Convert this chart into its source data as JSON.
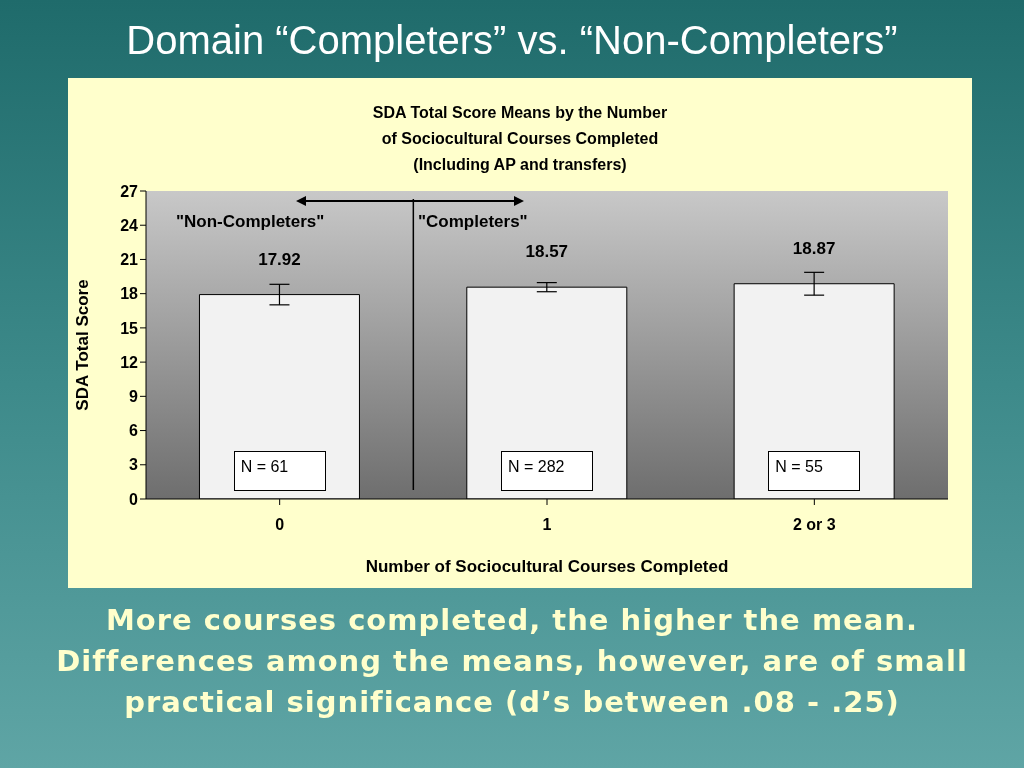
{
  "chart_data": {
    "type": "bar",
    "title": "Domain “Completers” vs. “Non-Completers”",
    "subtitle": "SDA Total Score Means by the Number\nof Sociocultural Courses Completed\n(Including AP and transfers)",
    "xlabel": "Number of Sociocultural Courses Completed",
    "ylabel": "SDA Total Score",
    "categories": [
      "0",
      "1",
      "2 or 3"
    ],
    "values": [
      17.92,
      18.57,
      18.87
    ],
    "errors": [
      0.9,
      0.4,
      1.0
    ],
    "color": "#f2f2f2",
    "data_labels": true,
    "ylim": [
      0,
      27
    ],
    "yticks": [
      0,
      3,
      6,
      9,
      12,
      15,
      18,
      21,
      24,
      27
    ],
    "annotations": [
      "\"Non-Completers\"",
      "\"Completers\"",
      "N = 61",
      "N = 282",
      "N = 55",
      "More courses completed, the higher the mean. Differences among the means, however, are of small practical significance (d’s between .08 - .25)"
    ]
  }
}
